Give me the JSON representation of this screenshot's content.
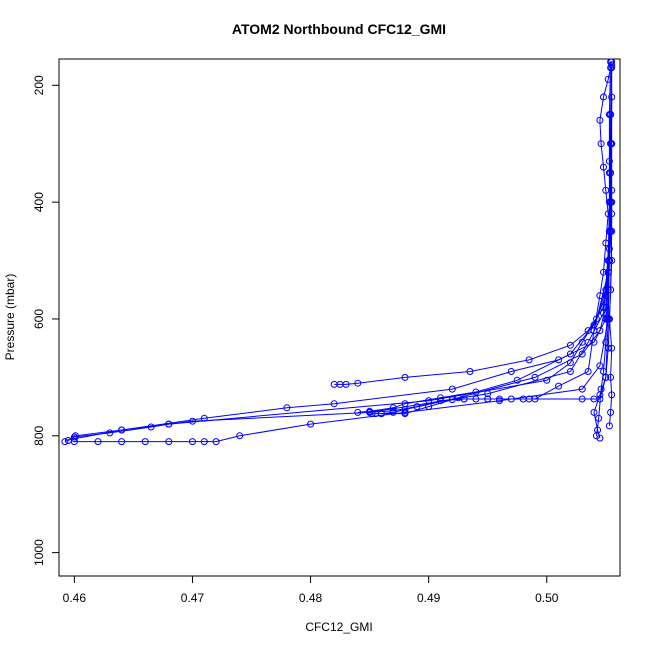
{
  "chart_data": {
    "type": "line",
    "title": "ATOM2 Northbound CFC12_GMI",
    "xlabel": "CFC12_GMI",
    "ylabel": "Pressure (mbar)",
    "xlim": [
      0.4587,
      0.5062
    ],
    "ylim": [
      1040,
      155
    ],
    "y_reversed": true,
    "grid": false,
    "markers": "open-circle",
    "colors": {
      "series": "#0000ff",
      "axis": "#000000"
    },
    "x_ticks": [
      0.46,
      0.47,
      0.48,
      0.49,
      0.5
    ],
    "x_tick_labels": [
      "0.46",
      "0.47",
      "0.48",
      "0.49",
      "0.50"
    ],
    "y_ticks": [
      200,
      400,
      600,
      800,
      1000
    ],
    "y_tick_labels": [
      "200",
      "400",
      "600",
      "800",
      "1000"
    ],
    "series": [
      {
        "x": [
          0.4592,
          0.46,
          0.463,
          0.4665,
          0.468,
          0.49,
          0.5,
          0.502,
          0.503,
          0.5042,
          0.505,
          0.5053,
          0.5053,
          0.5053,
          0.5054
        ],
        "y": [
          810,
          802,
          795,
          785,
          780,
          740,
          705,
          675,
          640,
          600,
          550,
          450,
          350,
          250,
          160
        ]
      },
      {
        "x": [
          0.4595,
          0.4601,
          0.464,
          0.468,
          0.47,
          0.485,
          0.495,
          0.502,
          0.5035,
          0.5048,
          0.5052,
          0.5055,
          0.5054,
          0.5055
        ],
        "y": [
          808,
          800,
          790,
          780,
          775,
          760,
          728,
          690,
          640,
          590,
          520,
          420,
          300,
          170
        ]
      },
      {
        "x": [
          0.46,
          0.464,
          0.471,
          0.478,
          0.482,
          0.492,
          0.497,
          0.501,
          0.504,
          0.505,
          0.5052,
          0.5054,
          0.5055
        ],
        "y": [
          805,
          790,
          770,
          752,
          745,
          720,
          690,
          670,
          640,
          600,
          520,
          400,
          220
        ]
      },
      {
        "x": [
          0.46,
          0.462,
          0.464,
          0.466,
          0.468,
          0.47,
          0.471,
          0.472,
          0.474,
          0.48,
          0.488,
          0.496,
          0.503,
          0.5045,
          0.5052,
          0.5053,
          0.5054
        ],
        "y": [
          810,
          810,
          810,
          810,
          810,
          810,
          810,
          810,
          800,
          780,
          760,
          740,
          720,
          680,
          600,
          450,
          300
        ]
      },
      {
        "x": [
          0.482,
          0.4825,
          0.483,
          0.484,
          0.488,
          0.4935,
          0.4985,
          0.502,
          0.5035,
          0.5048,
          0.5052,
          0.5053,
          0.5054
        ],
        "y": [
          712,
          712,
          712,
          710,
          700,
          690,
          670,
          645,
          620,
          580,
          500,
          400,
          250
        ]
      },
      {
        "x": [
          0.484,
          0.485,
          0.487,
          0.488,
          0.491,
          0.494,
          0.4975,
          0.502,
          0.504,
          0.505,
          0.5053,
          0.5054
        ],
        "y": [
          760,
          758,
          752,
          745,
          735,
          725,
          705,
          660,
          610,
          560,
          480,
          350
        ]
      },
      {
        "x": [
          0.486,
          0.488,
          0.49,
          0.492,
          0.493,
          0.495,
          0.496,
          0.498,
          0.4985,
          0.503,
          0.504,
          0.5045,
          0.505,
          0.5052,
          0.5053
        ],
        "y": [
          762,
          762,
          750,
          738,
          737,
          737,
          737,
          737,
          737,
          737,
          737,
          737,
          700,
          600,
          500
        ]
      },
      {
        "x": [
          0.4852,
          0.4855,
          0.486,
          0.487,
          0.488,
          0.4925,
          0.499,
          0.503,
          0.5045,
          0.505,
          0.5053,
          0.5055
        ],
        "y": [
          762,
          762,
          762,
          760,
          755,
          735,
          700,
          660,
          620,
          580,
          500,
          380
        ]
      },
      {
        "x": [
          0.485,
          0.487,
          0.489,
          0.491,
          0.493,
          0.494,
          0.495,
          0.497,
          0.499,
          0.501,
          0.5035,
          0.504,
          0.5052
        ],
        "y": [
          760,
          757,
          750,
          740,
          737,
          737,
          737,
          737,
          737,
          715,
          690,
          620,
          520
        ]
      },
      {
        "x": [
          0.5042,
          0.5044,
          0.5046,
          0.5048,
          0.505,
          0.5051,
          0.5052,
          0.5053,
          0.5054,
          0.5055
        ],
        "y": [
          800,
          770,
          720,
          690,
          640,
          600,
          550,
          500,
          400,
          300
        ]
      },
      {
        "x": [
          0.5045,
          0.5043,
          0.504,
          0.5045,
          0.505,
          0.5052,
          0.5053,
          0.5054,
          0.5055,
          0.5055,
          0.5055
        ],
        "y": [
          804,
          790,
          760,
          730,
          700,
          650,
          600,
          550,
          450,
          300,
          165
        ]
      },
      {
        "x": [
          0.5053,
          0.5054,
          0.5055,
          0.5054,
          0.5055,
          0.5053,
          0.5054,
          0.5055,
          0.5054,
          0.5055,
          0.5053,
          0.5054,
          0.5055
        ],
        "y": [
          783,
          760,
          730,
          700,
          650,
          600,
          550,
          500,
          450,
          400,
          330,
          250,
          160
        ]
      },
      {
        "x": [
          0.504,
          0.5045,
          0.5048,
          0.505,
          0.5052,
          0.505,
          0.5048,
          0.5046,
          0.5045,
          0.5048,
          0.5052,
          0.5054
        ],
        "y": [
          620,
          560,
          520,
          470,
          420,
          380,
          340,
          300,
          260,
          220,
          190,
          170
        ]
      }
    ]
  }
}
